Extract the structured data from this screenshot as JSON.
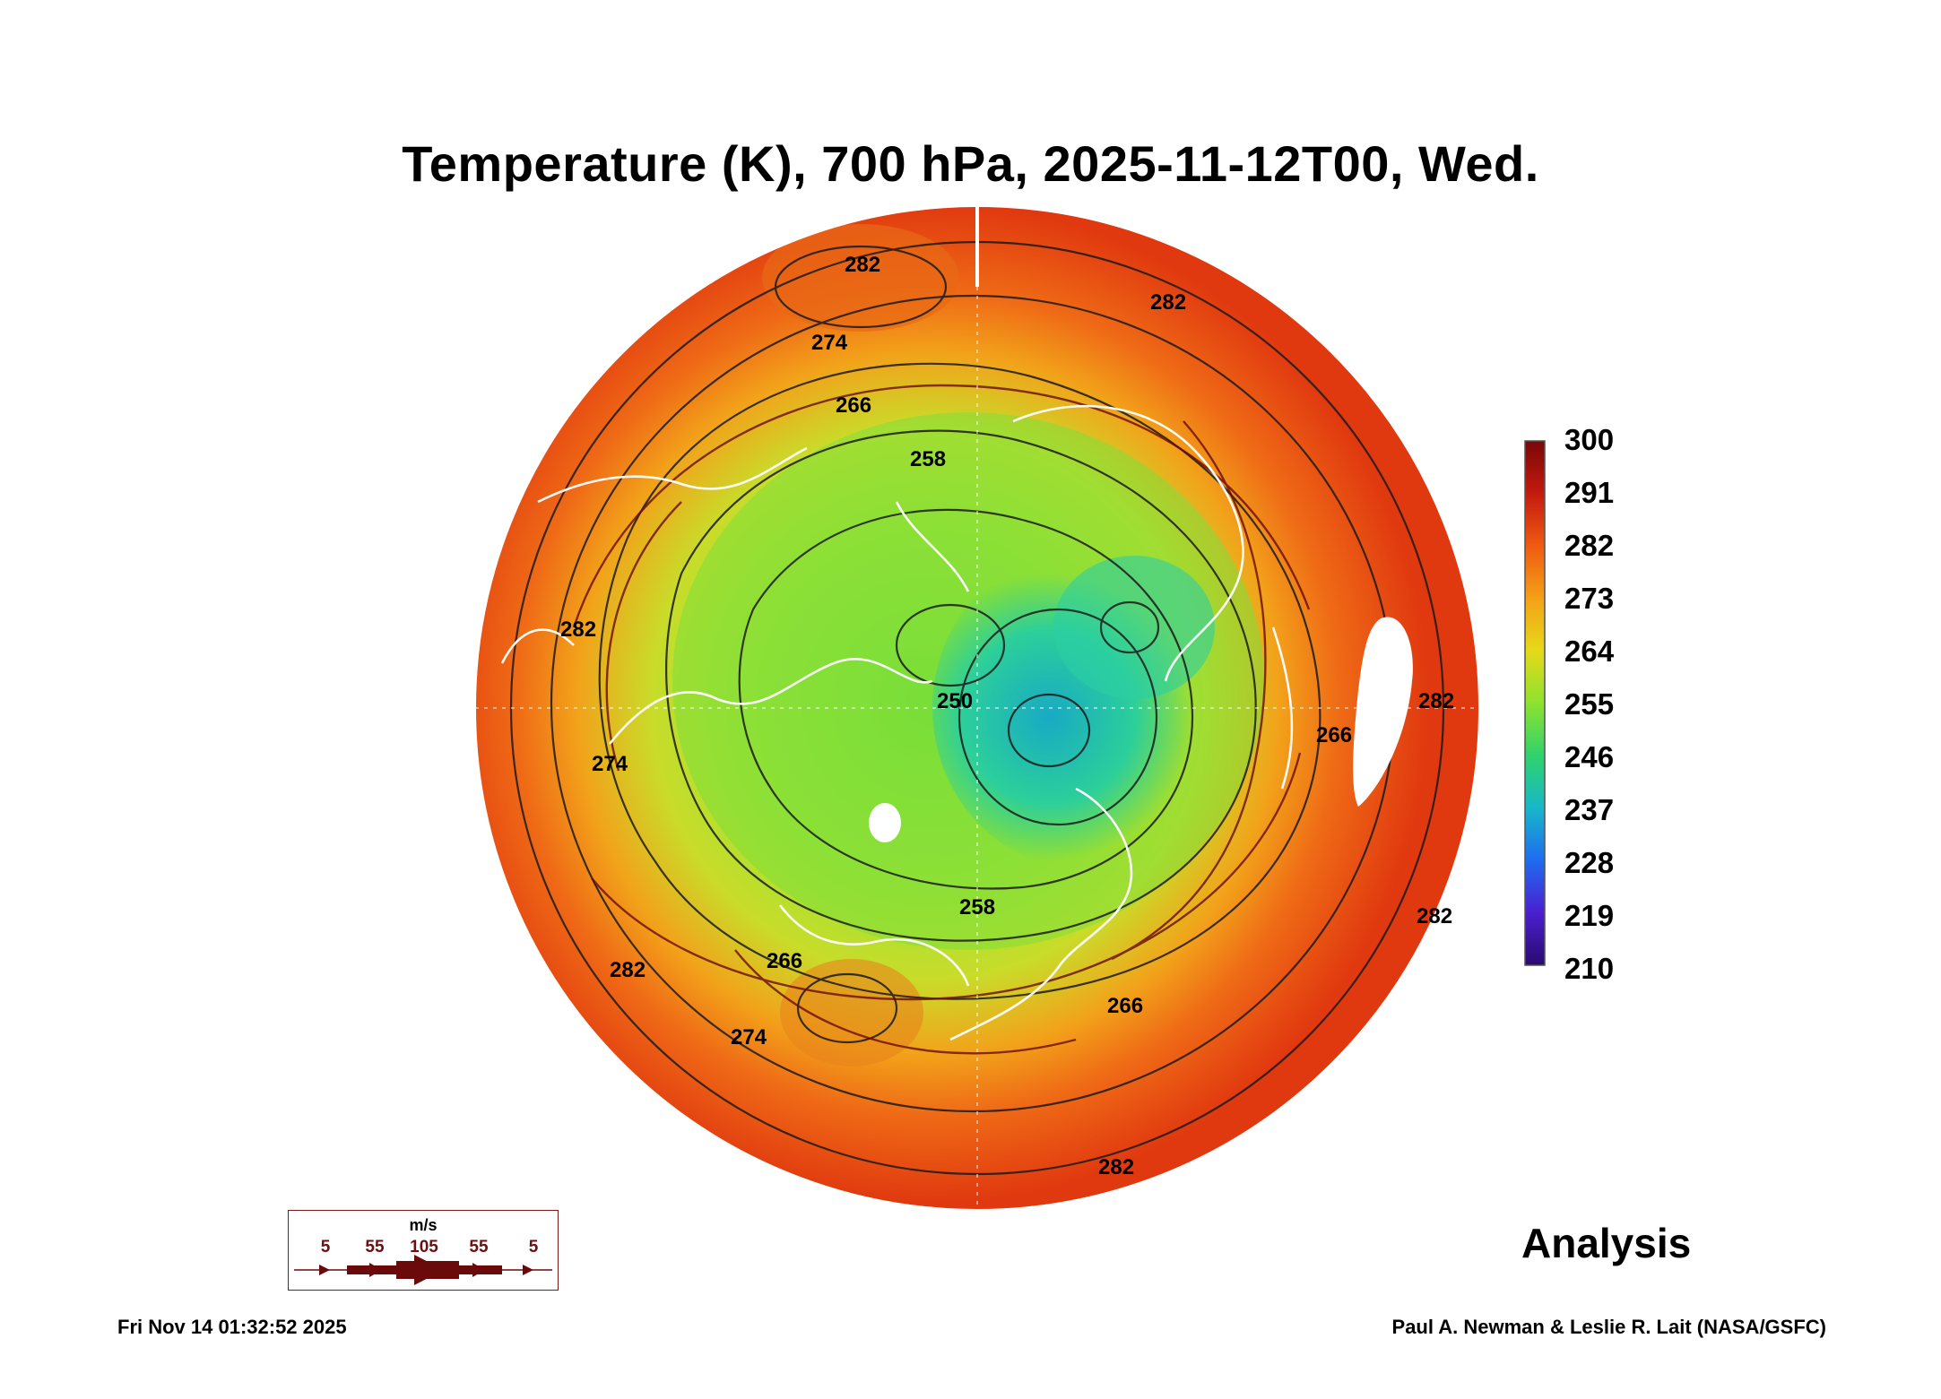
{
  "title": "Temperature (K), 700 hPa, 2025-11-12T00, Wed.",
  "map": {
    "projection": "north-polar-stereographic",
    "contour_labels": [
      "282",
      "282",
      "274",
      "266",
      "258",
      "250",
      "266",
      "274",
      "282",
      "266",
      "282",
      "258",
      "266",
      "274",
      "282",
      "282",
      "282"
    ]
  },
  "colorbar": {
    "unit": "K",
    "ticks": [
      "300",
      "291",
      "282",
      "273",
      "264",
      "255",
      "246",
      "237",
      "228",
      "219",
      "210"
    ],
    "colors": [
      "#2a0a6e",
      "#4b1fd0",
      "#1e6cf0",
      "#18b7c9",
      "#2fd36b",
      "#8de22e",
      "#e6d91a",
      "#f5a017",
      "#ef5a12",
      "#c41a0e",
      "#7a0707"
    ]
  },
  "wind_legend": {
    "unit": "m/s",
    "labels": [
      "5",
      "55",
      "105",
      "55",
      "5"
    ]
  },
  "panel_label": "Analysis",
  "footer": {
    "timestamp": "Fri Nov 14 01:32:52 2025",
    "credit": "Paul A. Newman & Leslie R. Lait (NASA/GSFC)"
  }
}
